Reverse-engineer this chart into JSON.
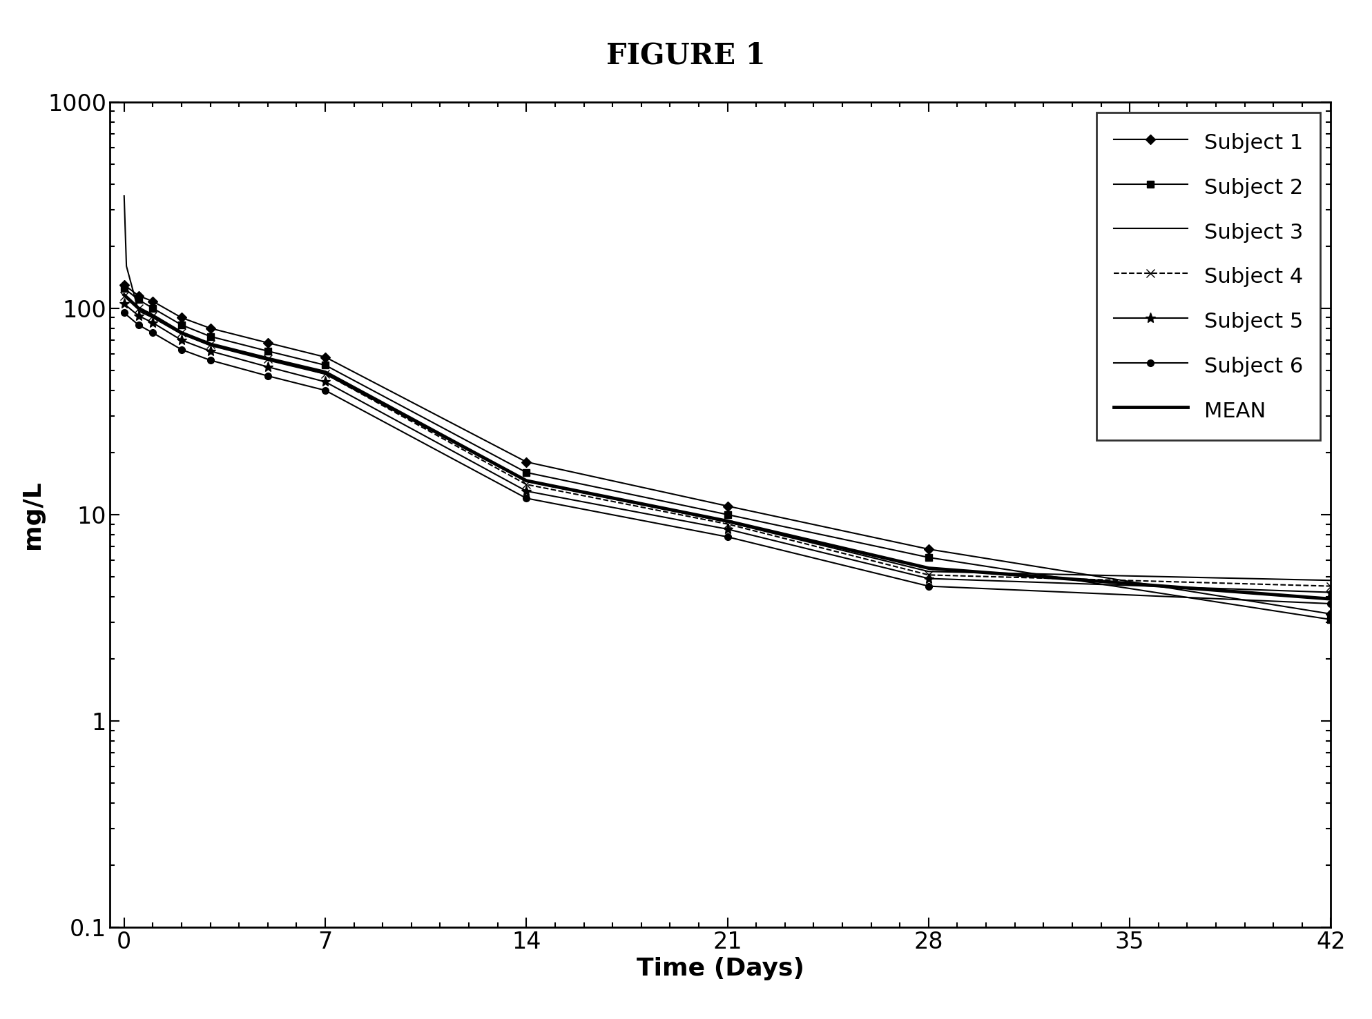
{
  "title": "FIGURE 1",
  "xlabel": "Time (Days)",
  "ylabel": "mg/L",
  "xlim": [
    -0.5,
    42
  ],
  "ylim": [
    0.1,
    1000
  ],
  "xticks": [
    0,
    7,
    14,
    21,
    28,
    35,
    42
  ],
  "background_color": "#ffffff",
  "subjects": {
    "Subject 1": {
      "x": [
        0,
        0.5,
        1,
        2,
        3,
        5,
        7,
        14,
        21,
        28,
        42
      ],
      "y": [
        130,
        115,
        108,
        90,
        80,
        68,
        58,
        18,
        11,
        6.8,
        3.3
      ],
      "color": "#000000",
      "linestyle": "-",
      "marker": "D",
      "markersize": 7,
      "linewidth": 1.5,
      "markevery": 1
    },
    "Subject 2": {
      "x": [
        0,
        0.5,
        1,
        2,
        3,
        5,
        7,
        14,
        21,
        28,
        42
      ],
      "y": [
        125,
        110,
        100,
        83,
        73,
        62,
        53,
        16,
        10,
        6.2,
        3.1
      ],
      "color": "#000000",
      "linestyle": "-",
      "marker": "s",
      "markersize": 7,
      "linewidth": 1.5,
      "markevery": 1
    },
    "Subject 3": {
      "x": [
        0,
        0.08,
        0.5,
        1,
        2,
        3,
        5,
        7,
        14,
        21,
        28,
        42
      ],
      "y": [
        350,
        160,
        97,
        90,
        75,
        66,
        56,
        48,
        14.5,
        9.2,
        5.3,
        4.8
      ],
      "color": "#000000",
      "linestyle": "-",
      "marker": "None",
      "markersize": 0,
      "linewidth": 1.5,
      "markevery": 1
    },
    "Subject 4": {
      "x": [
        0,
        0.5,
        1,
        2,
        3,
        5,
        7,
        14,
        21,
        28,
        42
      ],
      "y": [
        115,
        100,
        92,
        76,
        67,
        57,
        48,
        14,
        9.0,
        5.1,
        4.5
      ],
      "color": "#000000",
      "linestyle": "--",
      "marker": "x",
      "markersize": 9,
      "linewidth": 1.5,
      "markevery": 1
    },
    "Subject 5": {
      "x": [
        0,
        0.5,
        1,
        2,
        3,
        5,
        7,
        14,
        21,
        28,
        42
      ],
      "y": [
        105,
        92,
        85,
        70,
        62,
        52,
        44,
        13,
        8.5,
        4.9,
        4.2
      ],
      "color": "#000000",
      "linestyle": "-",
      "marker": "*",
      "markersize": 11,
      "linewidth": 1.5,
      "markevery": 1
    },
    "Subject 6": {
      "x": [
        0,
        0.5,
        1,
        2,
        3,
        5,
        7,
        14,
        21,
        28,
        42
      ],
      "y": [
        95,
        83,
        76,
        63,
        56,
        47,
        40,
        12,
        7.8,
        4.5,
        3.7
      ],
      "color": "#000000",
      "linestyle": "-",
      "marker": "o",
      "markersize": 7,
      "linewidth": 1.5,
      "markevery": 1
    },
    "MEAN": {
      "x": [
        0,
        0.5,
        1,
        2,
        3,
        5,
        7,
        14,
        21,
        28,
        42
      ],
      "y": [
        116,
        100,
        92,
        76,
        67,
        57,
        49,
        14.6,
        9.3,
        5.5,
        3.9
      ],
      "color": "#000000",
      "linestyle": "-",
      "marker": "None",
      "markersize": 0,
      "linewidth": 3.5,
      "markevery": 1
    }
  },
  "legend_order": [
    "Subject 1",
    "Subject 2",
    "Subject 3",
    "Subject 4",
    "Subject 5",
    "Subject 6",
    "MEAN"
  ]
}
